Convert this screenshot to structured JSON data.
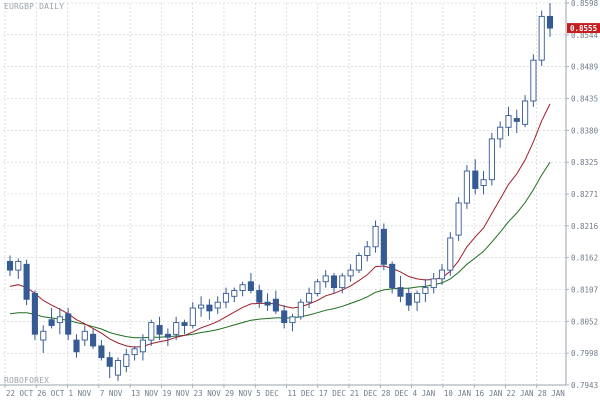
{
  "chart_title": "EURGBP DAILY",
  "watermark": "ROBOFOREX",
  "colors": {
    "background": "#ffffff",
    "grid": "#c9ccd1",
    "frame": "#9aa3ad",
    "candle": "#355a94",
    "ma_fast": "#a11d2b",
    "ma_slow": "#1f6e1f",
    "price_tag_bg": "#c41e1e",
    "price_tag_text": "#ffffff",
    "axis_text": "#6f7c8c"
  },
  "chart_data": {
    "type": "candlestick",
    "title": "EURGBP DAILY",
    "current_price": "0.8555",
    "price_axis_labels": [
      "0.8598",
      "0.8544",
      "0.8489",
      "0.8435",
      "0.8380",
      "0.8325",
      "0.8271",
      "0.8216",
      "0.8162",
      "0.8107",
      "0.8052",
      "0.7998",
      "0.7943"
    ],
    "date_axis_labels": [
      "22 OCT",
      "26 OCT",
      "1 NOV",
      "7 NOV",
      "13 NOV",
      "19 NOV",
      "23 NOV",
      "29 NOV",
      "5 DEC",
      "11 DEC",
      "17 DEC",
      "21 DEC",
      "28 DEC",
      "4 JAN",
      "10 JAN",
      "16 JAN",
      "22 JAN",
      "28 JAN"
    ],
    "ylim": [
      0.7943,
      0.8598
    ],
    "grid": true,
    "candles": [
      {
        "date": "22 OCT",
        "o": 0.8155,
        "h": 0.8165,
        "l": 0.813,
        "c": 0.814
      },
      {
        "date": "23 OCT",
        "o": 0.814,
        "h": 0.816,
        "l": 0.8125,
        "c": 0.8155
      },
      {
        "date": "24 OCT",
        "o": 0.815,
        "h": 0.8158,
        "l": 0.808,
        "c": 0.809
      },
      {
        "date": "25 OCT",
        "o": 0.81,
        "h": 0.8105,
        "l": 0.802,
        "c": 0.803
      },
      {
        "date": "26 OCT",
        "o": 0.802,
        "h": 0.8045,
        "l": 0.7998,
        "c": 0.8035
      },
      {
        "date": "29 OCT",
        "o": 0.8055,
        "h": 0.8075,
        "l": 0.804,
        "c": 0.8045
      },
      {
        "date": "30 OCT",
        "o": 0.805,
        "h": 0.8075,
        "l": 0.803,
        "c": 0.806
      },
      {
        "date": "31 OCT",
        "o": 0.8065,
        "h": 0.8075,
        "l": 0.802,
        "c": 0.803
      },
      {
        "date": "1 NOV",
        "o": 0.802,
        "h": 0.803,
        "l": 0.799,
        "c": 0.8
      },
      {
        "date": "2 NOV",
        "o": 0.802,
        "h": 0.8045,
        "l": 0.801,
        "c": 0.8035
      },
      {
        "date": "5 NOV",
        "o": 0.803,
        "h": 0.804,
        "l": 0.8005,
        "c": 0.801
      },
      {
        "date": "6 NOV",
        "o": 0.801,
        "h": 0.802,
        "l": 0.7985,
        "c": 0.799
      },
      {
        "date": "7 NOV",
        "o": 0.799,
        "h": 0.8,
        "l": 0.7955,
        "c": 0.7975
      },
      {
        "date": "8 NOV",
        "o": 0.796,
        "h": 0.799,
        "l": 0.795,
        "c": 0.7985
      },
      {
        "date": "9 NOV",
        "o": 0.7975,
        "h": 0.8005,
        "l": 0.7965,
        "c": 0.7995
      },
      {
        "date": "12 NOV",
        "o": 0.7995,
        "h": 0.801,
        "l": 0.7985,
        "c": 0.8005
      },
      {
        "date": "13 NOV",
        "o": 0.8,
        "h": 0.803,
        "l": 0.7985,
        "c": 0.802
      },
      {
        "date": "14 NOV",
        "o": 0.802,
        "h": 0.8055,
        "l": 0.801,
        "c": 0.805
      },
      {
        "date": "15 NOV",
        "o": 0.8045,
        "h": 0.806,
        "l": 0.802,
        "c": 0.803
      },
      {
        "date": "16 NOV",
        "o": 0.803,
        "h": 0.804,
        "l": 0.801,
        "c": 0.8025
      },
      {
        "date": "19 NOV",
        "o": 0.803,
        "h": 0.806,
        "l": 0.802,
        "c": 0.805
      },
      {
        "date": "20 NOV",
        "o": 0.805,
        "h": 0.8055,
        "l": 0.803,
        "c": 0.8045
      },
      {
        "date": "21 NOV",
        "o": 0.8045,
        "h": 0.8085,
        "l": 0.804,
        "c": 0.8075
      },
      {
        "date": "22 NOV",
        "o": 0.8075,
        "h": 0.8095,
        "l": 0.806,
        "c": 0.808
      },
      {
        "date": "23 NOV",
        "o": 0.808,
        "h": 0.809,
        "l": 0.8055,
        "c": 0.807
      },
      {
        "date": "26 NOV",
        "o": 0.8075,
        "h": 0.8095,
        "l": 0.8065,
        "c": 0.8085
      },
      {
        "date": "27 NOV",
        "o": 0.8085,
        "h": 0.811,
        "l": 0.8075,
        "c": 0.81
      },
      {
        "date": "28 NOV",
        "o": 0.8095,
        "h": 0.811,
        "l": 0.8085,
        "c": 0.8105
      },
      {
        "date": "29 NOV",
        "o": 0.8105,
        "h": 0.812,
        "l": 0.8095,
        "c": 0.8115
      },
      {
        "date": "30 NOV",
        "o": 0.812,
        "h": 0.8135,
        "l": 0.81,
        "c": 0.8105
      },
      {
        "date": "3 DEC",
        "o": 0.8105,
        "h": 0.8115,
        "l": 0.8075,
        "c": 0.8085
      },
      {
        "date": "4 DEC",
        "o": 0.8085,
        "h": 0.81,
        "l": 0.807,
        "c": 0.808
      },
      {
        "date": "5 DEC",
        "o": 0.809,
        "h": 0.8105,
        "l": 0.8065,
        "c": 0.807
      },
      {
        "date": "6 DEC",
        "o": 0.807,
        "h": 0.808,
        "l": 0.804,
        "c": 0.805
      },
      {
        "date": "7 DEC",
        "o": 0.805,
        "h": 0.8065,
        "l": 0.8035,
        "c": 0.806
      },
      {
        "date": "10 DEC",
        "o": 0.806,
        "h": 0.809,
        "l": 0.8055,
        "c": 0.8085
      },
      {
        "date": "11 DEC",
        "o": 0.8085,
        "h": 0.811,
        "l": 0.8075,
        "c": 0.81
      },
      {
        "date": "12 DEC",
        "o": 0.81,
        "h": 0.8125,
        "l": 0.8095,
        "c": 0.812
      },
      {
        "date": "13 DEC",
        "o": 0.812,
        "h": 0.814,
        "l": 0.811,
        "c": 0.813
      },
      {
        "date": "14 DEC",
        "o": 0.813,
        "h": 0.8135,
        "l": 0.81,
        "c": 0.811
      },
      {
        "date": "17 DEC",
        "o": 0.811,
        "h": 0.8135,
        "l": 0.81,
        "c": 0.813
      },
      {
        "date": "18 DEC",
        "o": 0.813,
        "h": 0.815,
        "l": 0.812,
        "c": 0.814
      },
      {
        "date": "19 DEC",
        "o": 0.814,
        "h": 0.817,
        "l": 0.8135,
        "c": 0.8165
      },
      {
        "date": "20 DEC",
        "o": 0.8165,
        "h": 0.819,
        "l": 0.8155,
        "c": 0.818
      },
      {
        "date": "21 DEC",
        "o": 0.818,
        "h": 0.8225,
        "l": 0.817,
        "c": 0.8215
      },
      {
        "date": "24 DEC",
        "o": 0.821,
        "h": 0.822,
        "l": 0.814,
        "c": 0.815
      },
      {
        "date": "26 DEC",
        "o": 0.815,
        "h": 0.8155,
        "l": 0.81,
        "c": 0.811
      },
      {
        "date": "27 DEC",
        "o": 0.811,
        "h": 0.813,
        "l": 0.8085,
        "c": 0.8095
      },
      {
        "date": "28 DEC",
        "o": 0.81,
        "h": 0.811,
        "l": 0.807,
        "c": 0.808
      },
      {
        "date": "31 DEC",
        "o": 0.8085,
        "h": 0.8105,
        "l": 0.807,
        "c": 0.81
      },
      {
        "date": "2 JAN",
        "o": 0.81,
        "h": 0.8125,
        "l": 0.8085,
        "c": 0.811
      },
      {
        "date": "3 JAN",
        "o": 0.811,
        "h": 0.8135,
        "l": 0.81,
        "c": 0.8125
      },
      {
        "date": "4 JAN",
        "o": 0.8125,
        "h": 0.815,
        "l": 0.8115,
        "c": 0.814
      },
      {
        "date": "7 JAN",
        "o": 0.814,
        "h": 0.8205,
        "l": 0.813,
        "c": 0.8195
      },
      {
        "date": "8 JAN",
        "o": 0.82,
        "h": 0.8265,
        "l": 0.819,
        "c": 0.8255
      },
      {
        "date": "9 JAN",
        "o": 0.8255,
        "h": 0.832,
        "l": 0.8245,
        "c": 0.831
      },
      {
        "date": "10 JAN",
        "o": 0.831,
        "h": 0.833,
        "l": 0.827,
        "c": 0.828
      },
      {
        "date": "11 JAN",
        "o": 0.8285,
        "h": 0.831,
        "l": 0.827,
        "c": 0.8295
      },
      {
        "date": "14 JAN",
        "o": 0.8295,
        "h": 0.8375,
        "l": 0.8285,
        "c": 0.8365
      },
      {
        "date": "15 JAN",
        "o": 0.8365,
        "h": 0.8395,
        "l": 0.835,
        "c": 0.8385
      },
      {
        "date": "16 JAN",
        "o": 0.8385,
        "h": 0.842,
        "l": 0.837,
        "c": 0.8405
      },
      {
        "date": "17 JAN",
        "o": 0.84,
        "h": 0.8415,
        "l": 0.8375,
        "c": 0.8395
      },
      {
        "date": "18 JAN",
        "o": 0.839,
        "h": 0.844,
        "l": 0.8385,
        "c": 0.843
      },
      {
        "date": "21 JAN",
        "o": 0.843,
        "h": 0.851,
        "l": 0.842,
        "c": 0.85
      },
      {
        "date": "22 JAN",
        "o": 0.85,
        "h": 0.8585,
        "l": 0.849,
        "c": 0.8575
      },
      {
        "date": "23 JAN",
        "o": 0.8575,
        "h": 0.8598,
        "l": 0.854,
        "c": 0.8555
      }
    ],
    "ma_fast": [
      0.8112,
      0.8115,
      0.811,
      0.81,
      0.8088,
      0.808,
      0.8073,
      0.8065,
      0.8055,
      0.8048,
      0.804,
      0.8032,
      0.8022,
      0.8015,
      0.801,
      0.8008,
      0.8009,
      0.8014,
      0.8017,
      0.802,
      0.8025,
      0.8028,
      0.8034,
      0.8041,
      0.8046,
      0.8052,
      0.806,
      0.8068,
      0.8076,
      0.8082,
      0.8083,
      0.8083,
      0.8082,
      0.8078,
      0.8075,
      0.8077,
      0.8082,
      0.8088,
      0.8096,
      0.81,
      0.8106,
      0.8113,
      0.8122,
      0.8132,
      0.8146,
      0.8147,
      0.8143,
      0.8137,
      0.8129,
      0.8125,
      0.8123,
      0.8124,
      0.8127,
      0.8138,
      0.8156,
      0.818,
      0.8197,
      0.8212,
      0.8237,
      0.8262,
      0.8287,
      0.8305,
      0.8329,
      0.836,
      0.8396,
      0.8425
    ],
    "ma_slow": [
      0.8065,
      0.8067,
      0.8067,
      0.8064,
      0.806,
      0.8058,
      0.8056,
      0.8054,
      0.805,
      0.8047,
      0.8043,
      0.8039,
      0.8033,
      0.8029,
      0.8026,
      0.8024,
      0.8024,
      0.8025,
      0.8025,
      0.8026,
      0.8027,
      0.8028,
      0.803,
      0.8033,
      0.8035,
      0.8038,
      0.8042,
      0.8046,
      0.805,
      0.8054,
      0.8056,
      0.8057,
      0.8058,
      0.8058,
      0.8058,
      0.806,
      0.8063,
      0.8067,
      0.8071,
      0.8074,
      0.8078,
      0.8083,
      0.8088,
      0.8094,
      0.8102,
      0.8106,
      0.8108,
      0.8109,
      0.8109,
      0.8111,
      0.8112,
      0.8115,
      0.8118,
      0.8125,
      0.8136,
      0.815,
      0.8161,
      0.8172,
      0.8188,
      0.8205,
      0.8223,
      0.8238,
      0.8256,
      0.8278,
      0.8303,
      0.8325
    ]
  }
}
